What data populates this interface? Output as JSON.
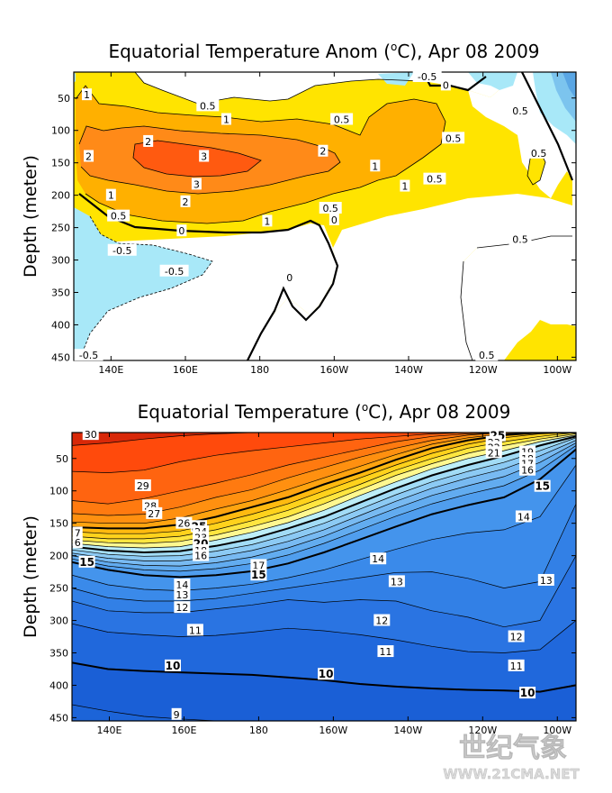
{
  "chart_data": [
    {
      "type": "heatmap",
      "title": "Equatorial Temperature Anom (°C), Apr 08 2009",
      "title_parts": [
        "Equatorial Temperature Anom (",
        "o",
        "C), Apr 08 2009"
      ],
      "ylabel": "Depth (meter)",
      "xlabel": "",
      "xlim": [
        130,
        265
      ],
      "ylim": [
        10,
        455
      ],
      "x_ticks": [
        {
          "lon": 140,
          "label": "140E"
        },
        {
          "lon": 160,
          "label": "160E"
        },
        {
          "lon": 180,
          "label": "180"
        },
        {
          "lon": 200,
          "label": "160W"
        },
        {
          "lon": 220,
          "label": "140W"
        },
        {
          "lon": 240,
          "label": "120W"
        },
        {
          "lon": 260,
          "label": "100W"
        }
      ],
      "y_ticks": [
        50,
        100,
        150,
        200,
        250,
        300,
        350,
        400,
        450
      ],
      "contour_labels": [
        {
          "text": "1",
          "lon": 133.5,
          "depth": 45
        },
        {
          "text": "0.5",
          "lon": 166,
          "depth": 62
        },
        {
          "text": "1",
          "lon": 171,
          "depth": 83
        },
        {
          "text": "0.5",
          "lon": 202,
          "depth": 83
        },
        {
          "text": "2",
          "lon": 150,
          "depth": 117
        },
        {
          "text": "2",
          "lon": 134,
          "depth": 140
        },
        {
          "text": "3",
          "lon": 165,
          "depth": 140
        },
        {
          "text": "2",
          "lon": 197,
          "depth": 132
        },
        {
          "text": "1",
          "lon": 211,
          "depth": 155
        },
        {
          "text": "0.5",
          "lon": 232,
          "depth": 112
        },
        {
          "text": "0.5",
          "lon": 255,
          "depth": 135
        },
        {
          "text": "3",
          "lon": 163,
          "depth": 183
        },
        {
          "text": "2",
          "lon": 160,
          "depth": 210
        },
        {
          "text": "1",
          "lon": 140,
          "depth": 200
        },
        {
          "text": "1",
          "lon": 219,
          "depth": 186
        },
        {
          "text": "0.5",
          "lon": 227,
          "depth": 175
        },
        {
          "text": "0.5",
          "lon": 199,
          "depth": 220
        },
        {
          "text": "0.5",
          "lon": 142,
          "depth": 232
        },
        {
          "text": "1",
          "lon": 182,
          "depth": 240
        },
        {
          "text": "0",
          "lon": 200,
          "depth": 238
        },
        {
          "text": "0",
          "lon": 159,
          "depth": 255
        },
        {
          "text": "0.5",
          "lon": 250,
          "depth": 268
        },
        {
          "text": "-0.5",
          "lon": 143,
          "depth": 285
        },
        {
          "text": "-0.5",
          "lon": 157,
          "depth": 317
        },
        {
          "text": "0",
          "lon": 188,
          "depth": 327
        },
        {
          "text": "0",
          "lon": 230,
          "depth": 30
        },
        {
          "text": "-0.5",
          "lon": 225,
          "depth": 17
        },
        {
          "text": "0.5",
          "lon": 250,
          "depth": 70
        },
        {
          "text": "0.5",
          "lon": 241,
          "depth": 447
        },
        {
          "text": "-0.5",
          "lon": 134,
          "depth": 447
        }
      ]
    },
    {
      "type": "heatmap",
      "title": "Equatorial Temperature (°C), Apr 08 2009",
      "title_parts": [
        "Equatorial Temperature (",
        "o",
        "C), Apr 08 2009"
      ],
      "ylabel": "Depth (meter)",
      "xlabel": "",
      "xlim": [
        130,
        265
      ],
      "ylim": [
        10,
        455
      ],
      "x_ticks": [
        {
          "lon": 140,
          "label": "140E"
        },
        {
          "lon": 160,
          "label": "160E"
        },
        {
          "lon": 180,
          "label": "180"
        },
        {
          "lon": 200,
          "label": "160W"
        },
        {
          "lon": 220,
          "label": "140W"
        },
        {
          "lon": 240,
          "label": "120W"
        },
        {
          "lon": 260,
          "label": "100W"
        }
      ],
      "y_ticks": [
        50,
        100,
        150,
        200,
        250,
        300,
        350,
        400,
        450
      ],
      "bold_contours": [
        25,
        20,
        15,
        10
      ],
      "isotherms": [
        {
          "value": 30,
          "depths": [
            30,
            26,
            20,
            15,
            12,
            10,
            10,
            10,
            10,
            10,
            10,
            10,
            10,
            10,
            10
          ]
        },
        {
          "value": 29,
          "depths": [
            70,
            72,
            68,
            55,
            45,
            38,
            32,
            26,
            20,
            16,
            12,
            10,
            10,
            10,
            10
          ]
        },
        {
          "value": 28,
          "depths": [
            115,
            120,
            112,
            100,
            88,
            75,
            60,
            48,
            36,
            24,
            16,
            12,
            10,
            10,
            10
          ]
        },
        {
          "value": 27,
          "depths": [
            135,
            138,
            136,
            125,
            110,
            98,
            80,
            64,
            48,
            34,
            22,
            14,
            10,
            10,
            10
          ]
        },
        {
          "value": 26,
          "depths": [
            148,
            150,
            150,
            142,
            128,
            115,
            98,
            80,
            62,
            44,
            28,
            18,
            12,
            10,
            10
          ]
        },
        {
          "value": 25,
          "depths": [
            156,
            158,
            158,
            152,
            140,
            125,
            110,
            90,
            72,
            52,
            34,
            22,
            14,
            10,
            10
          ]
        },
        {
          "value": 24,
          "depths": [
            163,
            166,
            166,
            162,
            150,
            136,
            120,
            100,
            80,
            60,
            42,
            28,
            18,
            12,
            10
          ]
        },
        {
          "value": 23,
          "depths": [
            170,
            174,
            174,
            170,
            160,
            146,
            130,
            110,
            90,
            68,
            50,
            34,
            24,
            16,
            10
          ]
        },
        {
          "value": 22,
          "depths": [
            176,
            180,
            181,
            178,
            168,
            155,
            140,
            120,
            98,
            76,
            58,
            42,
            30,
            20,
            12
          ]
        },
        {
          "value": 21,
          "depths": [
            181,
            186,
            188,
            186,
            176,
            164,
            149,
            130,
            107,
            86,
            66,
            50,
            38,
            24,
            14
          ]
        },
        {
          "value": 20,
          "depths": [
            186,
            192,
            195,
            193,
            185,
            174,
            158,
            140,
            118,
            96,
            76,
            60,
            46,
            30,
            16
          ]
        },
        {
          "value": 19,
          "depths": [
            191,
            198,
            201,
            200,
            193,
            183,
            168,
            150,
            128,
            106,
            86,
            70,
            56,
            38,
            18
          ]
        },
        {
          "value": 18,
          "depths": [
            196,
            204,
            208,
            208,
            202,
            192,
            178,
            160,
            138,
            116,
            96,
            80,
            66,
            46,
            22
          ]
        },
        {
          "value": 17,
          "depths": [
            200,
            210,
            215,
            216,
            211,
            202,
            188,
            170,
            148,
            127,
            107,
            92,
            78,
            56,
            26
          ]
        },
        {
          "value": 16,
          "depths": [
            205,
            216,
            222,
            224,
            220,
            212,
            199,
            181,
            160,
            139,
            120,
            105,
            92,
            68,
            30
          ]
        },
        {
          "value": 15,
          "depths": [
            210,
            222,
            230,
            233,
            230,
            224,
            212,
            195,
            175,
            155,
            136,
            122,
            110,
            82,
            36
          ]
        },
        {
          "value": 14,
          "depths": [
            230,
            245,
            252,
            254,
            250,
            244,
            234,
            222,
            206,
            190,
            175,
            165,
            160,
            140,
            60
          ]
        },
        {
          "value": 13,
          "depths": [
            250,
            265,
            270,
            270,
            266,
            258,
            250,
            242,
            234,
            226,
            225,
            235,
            250,
            240,
            120
          ]
        },
        {
          "value": 12,
          "depths": [
            270,
            285,
            288,
            288,
            282,
            276,
            268,
            272,
            268,
            270,
            285,
            295,
            310,
            300,
            200
          ]
        },
        {
          "value": 11,
          "depths": [
            305,
            318,
            322,
            325,
            323,
            318,
            312,
            316,
            322,
            330,
            340,
            348,
            350,
            345,
            300
          ]
        },
        {
          "value": 10,
          "depths": [
            365,
            375,
            378,
            380,
            382,
            384,
            388,
            392,
            398,
            402,
            405,
            407,
            408,
            410,
            400
          ]
        },
        {
          "value": 9,
          "depths": [
            430,
            440,
            448,
            452,
            455,
            455,
            455,
            455,
            455,
            455,
            455,
            455,
            455,
            455,
            455
          ]
        }
      ],
      "contour_labels": [
        {
          "text": "30",
          "lon": 135,
          "depth": 13
        },
        {
          "text": "29",
          "lon": 149,
          "depth": 92
        },
        {
          "text": "28",
          "lon": 151,
          "depth": 123
        },
        {
          "text": "27",
          "lon": 152,
          "depth": 135
        },
        {
          "text": "26",
          "lon": 160,
          "depth": 150
        },
        {
          "text": "25",
          "lon": 164,
          "depth": 155
        },
        {
          "text": "24",
          "lon": 164.5,
          "depth": 163
        },
        {
          "text": "23",
          "lon": 164.5,
          "depth": 172
        },
        {
          "text": "20",
          "lon": 164.5,
          "depth": 182
        },
        {
          "text": "18",
          "lon": 164.5,
          "depth": 192
        },
        {
          "text": "16",
          "lon": 164.5,
          "depth": 200
        },
        {
          "text": "17",
          "lon": 180,
          "depth": 215
        },
        {
          "text": "15",
          "lon": 180,
          "depth": 230
        },
        {
          "text": "7",
          "lon": 131.5,
          "depth": 165
        },
        {
          "text": "6",
          "lon": 131.5,
          "depth": 180
        },
        {
          "text": "15",
          "lon": 134,
          "depth": 210
        },
        {
          "text": "14",
          "lon": 159.5,
          "depth": 245
        },
        {
          "text": "13",
          "lon": 159.5,
          "depth": 260
        },
        {
          "text": "12",
          "lon": 159.5,
          "depth": 280
        },
        {
          "text": "11",
          "lon": 163,
          "depth": 315
        },
        {
          "text": "10",
          "lon": 157,
          "depth": 370
        },
        {
          "text": "9",
          "lon": 158,
          "depth": 445
        },
        {
          "text": "14",
          "lon": 212,
          "depth": 205
        },
        {
          "text": "13",
          "lon": 217,
          "depth": 240
        },
        {
          "text": "12",
          "lon": 213,
          "depth": 300
        },
        {
          "text": "11",
          "lon": 214,
          "depth": 348
        },
        {
          "text": "10",
          "lon": 198,
          "depth": 383
        },
        {
          "text": "25",
          "lon": 244,
          "depth": 15
        },
        {
          "text": "23",
          "lon": 243,
          "depth": 25
        },
        {
          "text": "22",
          "lon": 243,
          "depth": 33
        },
        {
          "text": "21",
          "lon": 243,
          "depth": 41
        },
        {
          "text": "19",
          "lon": 252,
          "depth": 40
        },
        {
          "text": "18",
          "lon": 252,
          "depth": 50
        },
        {
          "text": "17",
          "lon": 252,
          "depth": 58
        },
        {
          "text": "16",
          "lon": 252,
          "depth": 68
        },
        {
          "text": "15",
          "lon": 256,
          "depth": 93
        },
        {
          "text": "14",
          "lon": 251,
          "depth": 140
        },
        {
          "text": "13",
          "lon": 257,
          "depth": 238
        },
        {
          "text": "12",
          "lon": 249,
          "depth": 325
        },
        {
          "text": "11",
          "lon": 249,
          "depth": 370
        },
        {
          "text": "10",
          "lon": 252,
          "depth": 412
        }
      ]
    }
  ],
  "watermark": {
    "chinese": "世纪气象",
    "url": "WWW.21CMA.NET"
  }
}
